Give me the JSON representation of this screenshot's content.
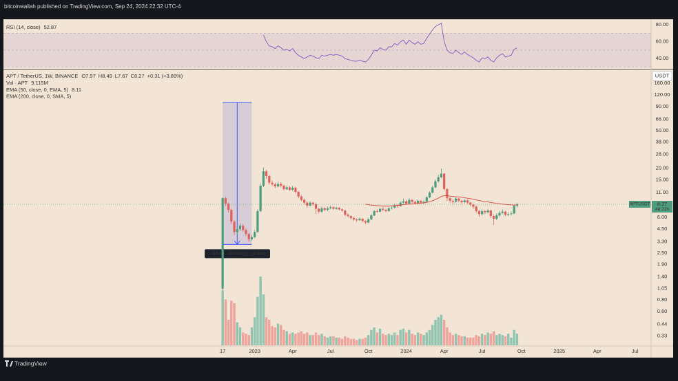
{
  "header": {
    "published": "bitcoinwallah published on TradingView.com, Sep 24, 2024 22:32 UTC-4"
  },
  "footer": {
    "brand": "TradingView"
  },
  "chart_data": [
    {
      "type": "candlestick",
      "title": "APT / TetherUS, 1W, BINANCE",
      "ohlc_legend": [
        "O7.97",
        "H8.49",
        "L7.67",
        "C8.27",
        "+0.31 (+3.89%)"
      ],
      "currency": "USDT",
      "symbol_tag": "APTUSDT",
      "countdown": "4d 22h",
      "up_color": "#4e9c7d",
      "down_color": "#e0615b",
      "log_scale": true,
      "grid": false,
      "ylim": [
        0.25,
        220
      ],
      "yticks": [
        {
          "value": 160,
          "label": "160.00"
        },
        {
          "value": 120,
          "label": "120.00"
        },
        {
          "value": 90,
          "label": "90.00"
        },
        {
          "value": 66,
          "label": "66.00"
        },
        {
          "value": 50,
          "label": "50.00"
        },
        {
          "value": 38,
          "label": "38.00"
        },
        {
          "value": 28,
          "label": "28.00"
        },
        {
          "value": 20,
          "label": "20.00"
        },
        {
          "value": 15,
          "label": "15.00"
        },
        {
          "value": 11,
          "label": "11.00"
        },
        {
          "value": 6,
          "label": "6.00"
        },
        {
          "value": 4.5,
          "label": "4.50"
        },
        {
          "value": 3.3,
          "label": "3.30"
        },
        {
          "value": 2.5,
          "label": "2.50"
        },
        {
          "value": 1.9,
          "label": "1.90"
        },
        {
          "value": 1.4,
          "label": "1.40"
        },
        {
          "value": 1.05,
          "label": "1.05"
        },
        {
          "value": 0.8,
          "label": "0.80"
        },
        {
          "value": 0.6,
          "label": "0.60"
        },
        {
          "value": 0.44,
          "label": "0.44"
        },
        {
          "value": 0.33,
          "label": "0.33"
        }
      ],
      "xlim": [
        -75.2,
        147
      ],
      "xticks": [
        {
          "value": 0,
          "label": "17"
        },
        {
          "value": 11,
          "label": "2023"
        },
        {
          "value": 24,
          "label": "Apr"
        },
        {
          "value": 37,
          "label": "Jul"
        },
        {
          "value": 50,
          "label": "Oct"
        },
        {
          "value": 63,
          "label": "2024"
        },
        {
          "value": 76,
          "label": "Apr"
        },
        {
          "value": 89,
          "label": "Jul"
        },
        {
          "value": 102.5,
          "label": "Oct"
        },
        {
          "value": 115.5,
          "label": "2025"
        },
        {
          "value": 128.5,
          "label": "Apr"
        },
        {
          "value": 141.5,
          "label": "Jul"
        }
      ],
      "open": [
        1.05,
        9.6,
        8.4,
        7.2,
        5.4,
        4.2,
        4.5,
        4.9,
        4.4,
        4.0,
        3.5,
        3.7,
        4.2,
        7.0,
        13.0,
        18.5,
        16.5,
        14.0,
        13.5,
        12.8,
        13.6,
        13.0,
        12.0,
        12.5,
        11.8,
        12.4,
        11.2,
        10.0,
        9.2,
        8.6,
        8.0,
        8.6,
        8.3,
        7.4,
        6.9,
        7.5,
        7.2,
        7.5,
        7.7,
        7.4,
        7.6,
        7.3,
        7.1,
        6.4,
        6.2,
        5.9,
        5.7,
        5.6,
        5.8,
        5.5,
        5.3,
        5.7,
        6.3,
        7.0,
        6.9,
        7.4,
        7.2,
        7.0,
        7.5,
        7.6,
        8.1,
        7.9,
        8.6,
        8.9,
        8.4,
        9.2,
        8.8,
        8.5,
        9.0,
        8.6,
        8.8,
        9.8,
        11.0,
        12.5,
        14.5,
        16.0,
        17.5,
        12.0,
        9.6,
        9.0,
        8.8,
        9.5,
        9.0,
        8.7,
        9.1,
        8.6,
        8.2,
        7.8,
        7.0,
        6.5,
        7.0,
        6.8,
        7.1,
        6.2,
        5.8,
        6.3,
        6.7,
        6.9,
        6.4,
        6.5,
        6.6,
        7.97
      ],
      "high": [
        9.8,
        9.9,
        8.6,
        7.4,
        5.6,
        4.8,
        5.2,
        5.1,
        4.6,
        4.1,
        3.9,
        4.4,
        7.3,
        13.8,
        20.4,
        19.2,
        17.0,
        14.8,
        14.0,
        14.4,
        14.1,
        13.4,
        13.1,
        12.9,
        13.0,
        12.7,
        11.5,
        10.3,
        9.5,
        8.9,
        8.9,
        8.8,
        8.5,
        7.6,
        7.8,
        7.7,
        7.8,
        8.0,
        7.9,
        7.8,
        7.7,
        7.5,
        7.2,
        6.6,
        6.3,
        6.1,
        5.9,
        6.0,
        5.9,
        5.6,
        5.9,
        6.5,
        7.2,
        7.3,
        7.6,
        7.7,
        7.4,
        7.7,
        7.9,
        8.4,
        8.3,
        8.9,
        9.5,
        9.2,
        9.6,
        9.4,
        9.0,
        9.3,
        9.2,
        9.1,
        10.1,
        11.4,
        13.0,
        15.2,
        17.0,
        19.8,
        17.8,
        12.3,
        9.9,
        9.3,
        9.8,
        9.7,
        9.2,
        9.4,
        9.3,
        8.8,
        8.4,
        8.0,
        7.2,
        7.3,
        7.2,
        7.4,
        7.2,
        6.4,
        6.6,
        7.0,
        7.3,
        7.0,
        6.8,
        6.9,
        8.1,
        8.49
      ],
      "low": [
        1.0,
        7.9,
        6.8,
        5.1,
        3.9,
        4.0,
        4.3,
        4.2,
        3.8,
        3.3,
        3.4,
        3.6,
        4.1,
        6.8,
        12.6,
        15.4,
        13.4,
        12.9,
        12.2,
        12.5,
        12.5,
        11.6,
        11.7,
        11.4,
        11.5,
        10.8,
        9.6,
        8.9,
        8.3,
        7.6,
        7.8,
        8.0,
        6.5,
        6.6,
        6.7,
        7.0,
        7.0,
        7.3,
        7.2,
        7.2,
        7.1,
        6.9,
        6.2,
        6.0,
        5.7,
        5.5,
        5.4,
        5.5,
        5.3,
        5.1,
        5.2,
        5.6,
        6.2,
        6.7,
        6.8,
        7.0,
        6.8,
        6.9,
        7.3,
        7.5,
        7.6,
        7.8,
        8.4,
        8.2,
        8.3,
        8.5,
        8.2,
        8.4,
        8.4,
        8.4,
        8.7,
        9.6,
        10.8,
        12.2,
        14.0,
        15.6,
        11.6,
        8.9,
        8.6,
        8.4,
        8.6,
        8.7,
        8.4,
        8.5,
        8.3,
        7.9,
        7.4,
        6.7,
        6.1,
        6.3,
        6.5,
        6.6,
        5.9,
        5.0,
        5.6,
        6.1,
        6.5,
        6.2,
        6.2,
        6.3,
        6.5,
        7.67
      ],
      "close": [
        9.6,
        8.4,
        7.2,
        5.4,
        4.2,
        4.5,
        4.9,
        4.4,
        4.0,
        3.5,
        3.7,
        4.2,
        7.0,
        13.0,
        18.5,
        16.5,
        14.0,
        13.5,
        12.8,
        13.6,
        13.0,
        12.0,
        12.5,
        11.8,
        12.4,
        11.2,
        10.0,
        9.2,
        8.6,
        8.0,
        8.6,
        8.3,
        7.4,
        6.9,
        7.5,
        7.2,
        7.5,
        7.7,
        7.4,
        7.6,
        7.3,
        7.1,
        6.4,
        6.2,
        5.9,
        5.7,
        5.6,
        5.8,
        5.5,
        5.3,
        5.7,
        6.3,
        7.0,
        6.9,
        7.4,
        7.2,
        7.0,
        7.5,
        7.6,
        8.1,
        7.9,
        8.6,
        8.9,
        8.4,
        9.2,
        8.8,
        8.5,
        9.0,
        8.6,
        8.8,
        9.8,
        11.0,
        12.5,
        14.5,
        16.0,
        17.5,
        12.0,
        9.6,
        9.0,
        8.8,
        9.5,
        9.0,
        8.7,
        9.1,
        8.6,
        8.2,
        7.8,
        7.0,
        6.5,
        7.0,
        6.8,
        7.1,
        6.2,
        5.8,
        6.3,
        6.7,
        6.9,
        6.4,
        6.5,
        6.6,
        7.97,
        8.27
      ],
      "series": [
        {
          "name": "EMA (50, close, 0, EMA, 5)",
          "last_value_label": "8.11",
          "color": "#e0463f",
          "values": [
            null,
            null,
            null,
            null,
            null,
            null,
            null,
            null,
            null,
            null,
            null,
            null,
            null,
            null,
            null,
            null,
            null,
            null,
            null,
            null,
            null,
            null,
            null,
            null,
            null,
            null,
            null,
            null,
            null,
            null,
            null,
            null,
            null,
            null,
            null,
            null,
            null,
            null,
            null,
            null,
            null,
            null,
            null,
            null,
            null,
            null,
            null,
            null,
            null,
            8.3,
            8.2,
            8.1,
            8.05,
            8.0,
            7.95,
            7.9,
            7.9,
            7.9,
            7.95,
            8.0,
            8.05,
            8.1,
            8.2,
            8.25,
            8.3,
            8.35,
            8.4,
            8.45,
            8.5,
            8.55,
            8.65,
            8.8,
            9.0,
            9.3,
            9.6,
            10.0,
            10.2,
            10.2,
            10.1,
            10.0,
            9.95,
            9.9,
            9.8,
            9.7,
            9.6,
            9.5,
            9.35,
            9.2,
            9.05,
            8.95,
            8.85,
            8.75,
            8.65,
            8.55,
            8.45,
            8.4,
            8.3,
            8.25,
            8.2,
            8.15,
            8.12,
            8.11
          ]
        },
        {
          "name": "EMA (200, close, 0, SMA, 5)"
        }
      ],
      "measure": {
        "x_from": 0,
        "x_to": 10,
        "from": 100,
        "to": 3.1,
        "label": "−96.9 (−96.93%) −9,693"
      }
    },
    {
      "type": "bar",
      "title": "Vol · APT",
      "last_value_label": "9.115M",
      "up_color": "#8fc4b0",
      "down_color": "#eea39c",
      "values": [
        43,
        36,
        20,
        35,
        33,
        18,
        14,
        10,
        9,
        8,
        14,
        22,
        38,
        54,
        40,
        22,
        20,
        15,
        14,
        17,
        16,
        12,
        11,
        9,
        10,
        9,
        10,
        11,
        9,
        10,
        8,
        8,
        10,
        8,
        9,
        7,
        6,
        7,
        7,
        6,
        6,
        5,
        7,
        6,
        5,
        5,
        4,
        5,
        5,
        6,
        8,
        12,
        14,
        10,
        13,
        9,
        8,
        9,
        8,
        10,
        8,
        12,
        13,
        10,
        12,
        9,
        8,
        10,
        9,
        8,
        10,
        12,
        16,
        20,
        22,
        24,
        20,
        14,
        10,
        8,
        9,
        8,
        7,
        7,
        6,
        6,
        6,
        8,
        7,
        9,
        8,
        10,
        9,
        11,
        8,
        9,
        8,
        7,
        9,
        6,
        12,
        9.115
      ]
    },
    {
      "type": "line",
      "title": "RSI (14, close)",
      "last_value_label": "52.87",
      "color": "#7e57c2",
      "ylim": [
        28,
        85
      ],
      "band": [
        30,
        70
      ],
      "midline": 50,
      "yticks": [
        {
          "value": 80,
          "label": "80.00"
        },
        {
          "value": 60,
          "label": "60.00"
        },
        {
          "value": 40,
          "label": "40.00"
        }
      ],
      "values": [
        null,
        null,
        null,
        null,
        null,
        null,
        null,
        null,
        null,
        null,
        null,
        null,
        null,
        null,
        68,
        60,
        55,
        54,
        52,
        55,
        53,
        50,
        51,
        49,
        52,
        47,
        44,
        42,
        40,
        42,
        44,
        43,
        41,
        40,
        44,
        43,
        44,
        45,
        44,
        45,
        44,
        43,
        40,
        39,
        38,
        37,
        37,
        38,
        37,
        36,
        39,
        44,
        50,
        49,
        53,
        51,
        50,
        54,
        54,
        58,
        56,
        60,
        62,
        57,
        62,
        59,
        57,
        60,
        57,
        58,
        64,
        69,
        74,
        78,
        80,
        82,
        60,
        50,
        47,
        46,
        50,
        47,
        45,
        48,
        45,
        43,
        41,
        38,
        36,
        41,
        40,
        42,
        38,
        36,
        41,
        44,
        46,
        42,
        43,
        44,
        51,
        52.87
      ]
    }
  ]
}
